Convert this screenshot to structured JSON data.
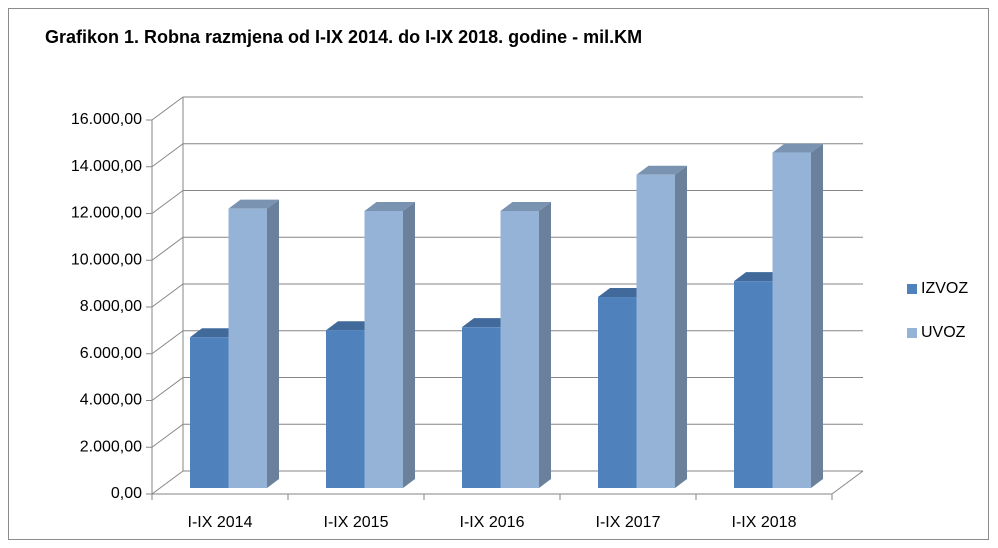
{
  "chart_data": {
    "type": "bar3d",
    "title": "Grafikon 1. Robna razmjena od I-IX 2014. do I-IX 2018. godine - mil.KM",
    "categories": [
      "I-IX 2014",
      "I-IX 2015",
      "I-IX 2016",
      "I-IX 2017",
      "I-IX 2018"
    ],
    "series": [
      {
        "name": "IZVOZ",
        "color": "#4f81bd",
        "values": [
          6450,
          6750,
          6880,
          8170,
          8850
        ]
      },
      {
        "name": "UVOZ",
        "color": "#95b3d7",
        "values": [
          11950,
          11850,
          11850,
          13400,
          14350
        ]
      }
    ],
    "ylim": [
      0,
      16000
    ],
    "yticks": [
      {
        "value": 0,
        "label": "0,00"
      },
      {
        "value": 2000,
        "label": "2.000,00"
      },
      {
        "value": 4000,
        "label": "4.000,00"
      },
      {
        "value": 6000,
        "label": "6.000,00"
      },
      {
        "value": 8000,
        "label": "8.000,00"
      },
      {
        "value": 10000,
        "label": "10.000,00"
      },
      {
        "value": 12000,
        "label": "12.000,00"
      },
      {
        "value": 14000,
        "label": "14.000,00"
      },
      {
        "value": 16000,
        "label": "16.000,00"
      }
    ],
    "grid": true,
    "legend": "right"
  }
}
